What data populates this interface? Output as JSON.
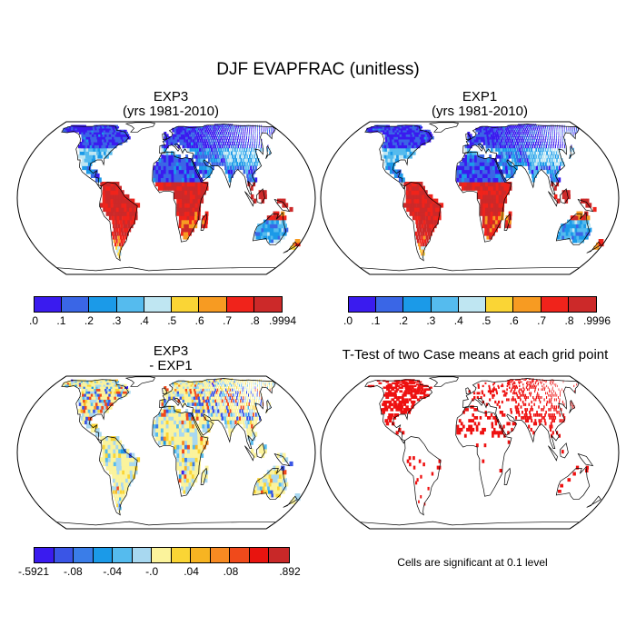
{
  "title": "DJF EVAPFRAC (unitless)",
  "panels": [
    {
      "id": "exp3",
      "title_line1": "EXP3",
      "title_line2": "(yrs 1981-2010)",
      "type": "field"
    },
    {
      "id": "exp1",
      "title_line1": "EXP1",
      "title_line2": "(yrs 1981-2010)",
      "type": "field"
    },
    {
      "id": "diff",
      "title_line1": "EXP3",
      "title_line2": "- EXP1",
      "type": "difference"
    },
    {
      "id": "ttest",
      "title_line1": "T-Test of two Case means at each grid point",
      "title_line2": "",
      "type": "significance"
    }
  ],
  "colorbars": {
    "exp3": {
      "colors": [
        "#3a1bef",
        "#3a66e6",
        "#1b9ae8",
        "#55bbee",
        "#bfe6f2",
        "#fad535",
        "#f79b22",
        "#f0231b",
        "#cc2929"
      ],
      "labels": [
        ".0",
        ".1",
        ".2",
        ".3",
        ".4",
        ".5",
        ".6",
        ".7",
        ".8",
        ".9994"
      ]
    },
    "exp1": {
      "colors": [
        "#3a1bef",
        "#3a66e6",
        "#1b9ae8",
        "#55bbee",
        "#bfe6f2",
        "#fad535",
        "#f79b22",
        "#f0231b",
        "#cc2929"
      ],
      "labels": [
        ".0",
        ".1",
        ".2",
        ".3",
        ".4",
        ".5",
        ".6",
        ".7",
        ".8",
        ".9996"
      ]
    },
    "diff": {
      "colors": [
        "#3a1bef",
        "#3a55e6",
        "#3a7de8",
        "#1b9ae8",
        "#55bbee",
        "#a8d8f0",
        "#fbf39c",
        "#fad535",
        "#f7b422",
        "#f78a22",
        "#f04a1b",
        "#e8140f",
        "#c82828"
      ],
      "labels": [
        "-.5921",
        "-.08",
        "-.04",
        "-.0",
        ".04",
        ".08",
        ".892"
      ]
    }
  },
  "significance_note": "Cells are significant at 0.1 level",
  "colors": {
    "coast": "#000000",
    "significant": "#ee1111"
  }
}
